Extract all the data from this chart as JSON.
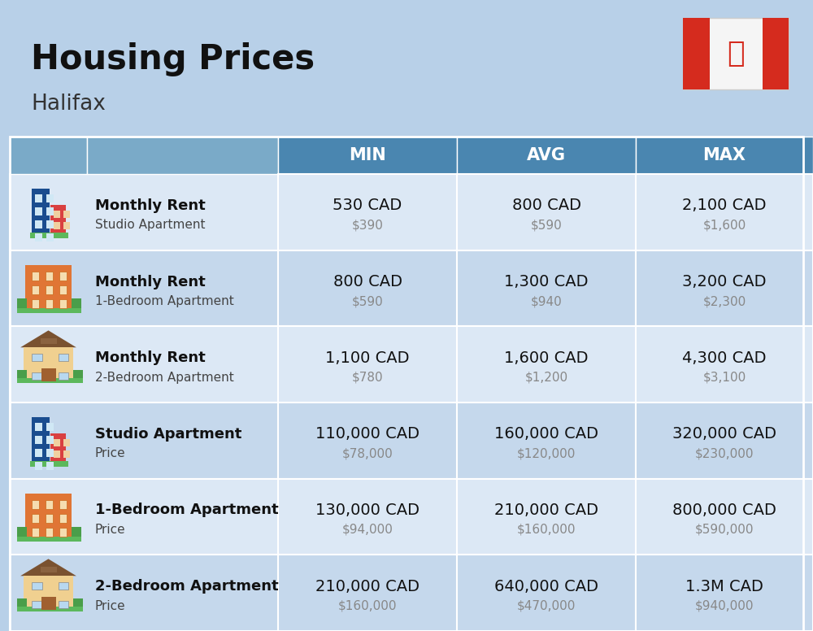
{
  "title": "Housing Prices",
  "subtitle": "Halifax",
  "background_color": "#b8d0e8",
  "header_bg_color_left": "#7aaac8",
  "header_bg_color_right": "#4a86b0",
  "row_bg_color_light": "#dce8f5",
  "row_bg_color_dark": "#c5d8ec",
  "col_header_labels": [
    "MIN",
    "AVG",
    "MAX"
  ],
  "rows": [
    {
      "bold_label": "Monthly Rent",
      "sub_label": "Studio Apartment",
      "min_cad": "530 CAD",
      "min_usd": "$390",
      "avg_cad": "800 CAD",
      "avg_usd": "$590",
      "max_cad": "2,100 CAD",
      "max_usd": "$1,600",
      "icon_type": "studio_blue"
    },
    {
      "bold_label": "Monthly Rent",
      "sub_label": "1-Bedroom Apartment",
      "min_cad": "800 CAD",
      "min_usd": "$590",
      "avg_cad": "1,300 CAD",
      "avg_usd": "$940",
      "max_cad": "3,200 CAD",
      "max_usd": "$2,300",
      "icon_type": "bedroom1_orange"
    },
    {
      "bold_label": "Monthly Rent",
      "sub_label": "2-Bedroom Apartment",
      "min_cad": "1,100 CAD",
      "min_usd": "$780",
      "avg_cad": "1,600 CAD",
      "avg_usd": "$1,200",
      "max_cad": "4,300 CAD",
      "max_usd": "$3,100",
      "icon_type": "bedroom2_tan"
    },
    {
      "bold_label": "Studio Apartment",
      "sub_label": "Price",
      "min_cad": "110,000 CAD",
      "min_usd": "$78,000",
      "avg_cad": "160,000 CAD",
      "avg_usd": "$120,000",
      "max_cad": "320,000 CAD",
      "max_usd": "$230,000",
      "icon_type": "studio_blue"
    },
    {
      "bold_label": "1-Bedroom Apartment",
      "sub_label": "Price",
      "min_cad": "130,000 CAD",
      "min_usd": "$94,000",
      "avg_cad": "210,000 CAD",
      "avg_usd": "$160,000",
      "max_cad": "800,000 CAD",
      "max_usd": "$590,000",
      "icon_type": "bedroom1_orange"
    },
    {
      "bold_label": "2-Bedroom Apartment",
      "sub_label": "Price",
      "min_cad": "210,000 CAD",
      "min_usd": "$160,000",
      "avg_cad": "640,000 CAD",
      "avg_usd": "$470,000",
      "max_cad": "1.3M CAD",
      "max_usd": "$940,000",
      "icon_type": "bedroom2_tan"
    }
  ]
}
